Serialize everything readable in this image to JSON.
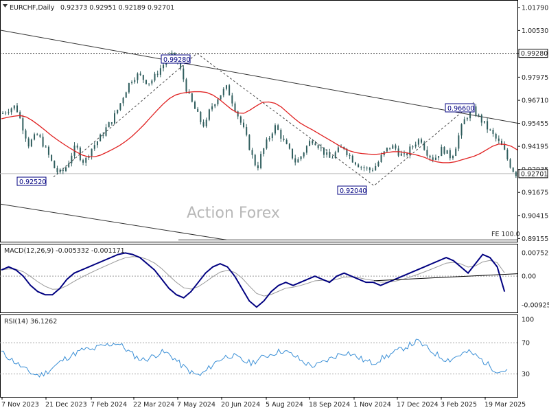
{
  "header": {
    "symbol": "EURCHF,Daily",
    "ohlc": "0.92373 0.92951 0.92189 0.92701"
  },
  "watermark": "Action Forex",
  "colors": {
    "candle": "#2f5d5d",
    "ma": "#e02020",
    "macd": "#000080",
    "signal": "#999999",
    "rsi": "#3a8fd6",
    "trendline": "#333333"
  },
  "chart_data": [
    {
      "type": "candlestick",
      "title": "EURCHF,Daily",
      "x_ticks": [
        "7 Nov 2023",
        "21 Dec 2023",
        "7 Feb 2024",
        "22 Mar 2024",
        "7 May 2024",
        "20 Jun 2024",
        "5 Aug 2024",
        "18 Sep 2024",
        "1 Nov 2024",
        "17 Dec 2024",
        "3 Feb 2025",
        "19 Mar 2025"
      ],
      "y_ticks": [
        "1.01790",
        "1.00530",
        "0.99280",
        "0.97975",
        "0.96710",
        "0.95455",
        "0.94195",
        "0.92935",
        "0.91675",
        "0.90415",
        "0.89155"
      ],
      "ylim": [
        0.8898,
        1.0212
      ],
      "current_price": "0.92701",
      "resistance_level": "0.99280",
      "annotations": [
        {
          "label": "0.99280",
          "x": "7 May 2024",
          "y": 0.9928
        },
        {
          "label": "0.92520",
          "x": "21 Dec 2023",
          "y": 0.9252
        },
        {
          "label": "0.92040",
          "x": "1 Nov 2024",
          "y": 0.9204
        },
        {
          "label": "0.96600",
          "x": "3 Feb 2025",
          "y": 0.966
        }
      ],
      "fe_label": "FE 100.0",
      "close": [
        0.96,
        0.962,
        0.963,
        0.964,
        0.957,
        0.95,
        0.943,
        0.946,
        0.948,
        0.945,
        0.94,
        0.935,
        0.93,
        0.927,
        0.9285,
        0.932,
        0.938,
        0.942,
        0.936,
        0.933,
        0.939,
        0.942,
        0.945,
        0.948,
        0.952,
        0.955,
        0.959,
        0.964,
        0.97,
        0.975,
        0.979,
        0.981,
        0.98,
        0.978,
        0.977,
        0.979,
        0.983,
        0.986,
        0.989,
        0.9915,
        0.99,
        0.985,
        0.978,
        0.97,
        0.965,
        0.96,
        0.955,
        0.953,
        0.962,
        0.966,
        0.969,
        0.972,
        0.974,
        0.968,
        0.962,
        0.956,
        0.95,
        0.943,
        0.935,
        0.93,
        0.938,
        0.943,
        0.948,
        0.953,
        0.95,
        0.945,
        0.941,
        0.937,
        0.933,
        0.936,
        0.94,
        0.944,
        0.946,
        0.943,
        0.94,
        0.937,
        0.935,
        0.938,
        0.94,
        0.942,
        0.938,
        0.935,
        0.933,
        0.931,
        0.93,
        0.929,
        0.93,
        0.933,
        0.937,
        0.94,
        0.942,
        0.941,
        0.938,
        0.936,
        0.939,
        0.942,
        0.945,
        0.946,
        0.94,
        0.937,
        0.935,
        0.938,
        0.941,
        0.938,
        0.936,
        0.942,
        0.95,
        0.956,
        0.96,
        0.962,
        0.959,
        0.956,
        0.953,
        0.95,
        0.947,
        0.944,
        0.941,
        0.935,
        0.93,
        0.927
      ],
      "ma": [
        0.957,
        0.9578,
        0.9584,
        0.9588,
        0.958,
        0.956,
        0.9535,
        0.9508,
        0.948,
        0.9455,
        0.9432,
        0.941,
        0.939,
        0.9372,
        0.9362,
        0.9362,
        0.9372,
        0.9388,
        0.9405,
        0.9424,
        0.9447,
        0.9474,
        0.9506,
        0.954,
        0.9578,
        0.9615,
        0.965,
        0.968,
        0.97,
        0.971,
        0.9715,
        0.9718,
        0.9718,
        0.9714,
        0.97,
        0.9678,
        0.965,
        0.9622,
        0.9602,
        0.96,
        0.9618,
        0.964,
        0.966,
        0.9662,
        0.9655,
        0.9635,
        0.9605,
        0.9575,
        0.9548,
        0.9528,
        0.951,
        0.949,
        0.947,
        0.945,
        0.943,
        0.941,
        0.9395,
        0.9385,
        0.938,
        0.9377,
        0.9375,
        0.9378,
        0.9385,
        0.939,
        0.939,
        0.9385,
        0.9378,
        0.937,
        0.936,
        0.9345,
        0.9335,
        0.933,
        0.933,
        0.9335,
        0.9345,
        0.9355,
        0.9365,
        0.938,
        0.94,
        0.942,
        0.9432,
        0.943,
        0.942,
        0.94
      ]
    },
    {
      "type": "line",
      "title": "MACD(12,26,9) -0.005332 -0.001171",
      "y_ticks": [
        "0.007526",
        "0.00",
        "-0.009252"
      ],
      "ylim": [
        -0.0115,
        0.0098
      ],
      "macd": [
        0.002,
        0.003,
        0.002,
        0.0,
        -0.003,
        -0.005,
        -0.006,
        -0.006,
        -0.004,
        -0.001,
        0.001,
        0.002,
        0.003,
        0.004,
        0.005,
        0.006,
        0.007,
        0.0075,
        0.007,
        0.006,
        0.004,
        0.002,
        -0.001,
        -0.004,
        -0.006,
        -0.007,
        -0.005,
        -0.002,
        0.001,
        0.003,
        0.004,
        0.003,
        0.0,
        -0.004,
        -0.008,
        -0.01,
        -0.008,
        -0.005,
        -0.003,
        -0.002,
        -0.003,
        -0.002,
        -0.001,
        0.0,
        -0.001,
        -0.002,
        0.0,
        0.001,
        0.0,
        -0.001,
        -0.002,
        -0.002,
        -0.003,
        -0.002,
        -0.001,
        0.0,
        0.001,
        0.002,
        0.003,
        0.004,
        0.005,
        0.006,
        0.005,
        0.003,
        0.001,
        0.004,
        0.007,
        0.006,
        0.003,
        -0.005
      ]
    },
    {
      "type": "line",
      "title": "RSI(14) 36.1262",
      "y_ticks": [
        "100",
        "70",
        "30"
      ],
      "ylim": [
        0,
        100
      ],
      "values": [
        58,
        52,
        46,
        40,
        34,
        30,
        28,
        32,
        38,
        44,
        50,
        54,
        58,
        62,
        60,
        64,
        66,
        68,
        70,
        65,
        58,
        52,
        48,
        50,
        54,
        58,
        56,
        50,
        42,
        36,
        30,
        28,
        34,
        42,
        48,
        52,
        54,
        50,
        46,
        44,
        48,
        52,
        55,
        58,
        60,
        56,
        52,
        46,
        42,
        40,
        44,
        48,
        52,
        56,
        58,
        54,
        50,
        46,
        44,
        48,
        52,
        56,
        60,
        64,
        68,
        72,
        66,
        60,
        55,
        50,
        48,
        52,
        56,
        58,
        54,
        48,
        42,
        36,
        33,
        36
      ]
    }
  ]
}
